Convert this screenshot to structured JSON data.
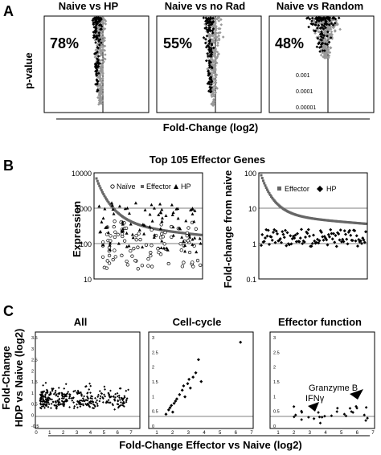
{
  "panel_A": {
    "label": "A",
    "y_axis_label": "p-value",
    "x_axis_label": "Fold-Change (log2)",
    "plots": [
      {
        "title": "Naive vs HP",
        "percent": "78%"
      },
      {
        "title": "Naive vs no Rad",
        "percent": "55%"
      },
      {
        "title": "Naive vs Random",
        "percent": "48%"
      }
    ],
    "pvalue_tick_labels": [
      "0.001",
      "0.0001",
      "0.00001"
    ]
  },
  "panel_B": {
    "label": "B",
    "title": "Top 105 Effector Genes",
    "left": {
      "y_axis_label": "Expression",
      "legend": [
        "Naïve",
        "Effector",
        "HP"
      ],
      "y_ticks": [
        "10000",
        "1000",
        "100",
        "10"
      ]
    },
    "right": {
      "y_axis_label": "Fold-change from naive",
      "legend": [
        "Effector",
        "HP"
      ],
      "y_ticks": [
        "100",
        "10",
        "1",
        "0.1"
      ]
    }
  },
  "panel_C": {
    "label": "C",
    "y_axis_label_1": "Fold-Change",
    "y_axis_label_2": "HDP vs Naive (log2)",
    "x_axis_label": "Fold-Change Effector vs Naive (log2)",
    "plots": [
      {
        "title": "All"
      },
      {
        "title": "Cell-cycle"
      },
      {
        "title": "Effector function"
      }
    ],
    "annotations": [
      "Granzyme B",
      "IFNγ"
    ],
    "y_ticks": [
      "3.5",
      "3",
      "2.5",
      "2",
      "1.5",
      "1",
      "0.5",
      "0",
      "-0.5"
    ],
    "x_ticks": [
      "1",
      "2",
      "3",
      "4",
      "5",
      "6",
      "7"
    ],
    "x_ticks_first": [
      "0",
      "1",
      "2",
      "3",
      "4",
      "5",
      "6",
      "7"
    ]
  },
  "chart_data": [
    {
      "type": "scatter",
      "title": "Naive vs HP",
      "xlabel": "Fold-Change (log2)",
      "ylabel": "p-value",
      "y_scale": "log",
      "percent_label": "78%",
      "x_ticks": [
        -8,
        -6,
        -4,
        -2,
        0,
        2,
        4,
        6
      ]
    },
    {
      "type": "scatter",
      "title": "Naive vs no Rad",
      "percent_label": "55%",
      "x_ticks": [
        -8,
        -6,
        -4,
        -2,
        0,
        2,
        4,
        6
      ]
    },
    {
      "type": "scatter",
      "title": "Naive vs Random",
      "percent_label": "48%",
      "x_ticks": [
        -8,
        -6,
        -4,
        -2,
        0,
        2,
        4,
        6
      ]
    },
    {
      "type": "scatter",
      "title": "Top 105 Effector Genes",
      "ylabel": "Expression",
      "y_scale": "log",
      "ylim": [
        10,
        10000
      ],
      "series": [
        {
          "name": "Naïve"
        },
        {
          "name": "Effector"
        },
        {
          "name": "HP"
        }
      ]
    },
    {
      "type": "scatter",
      "ylabel": "Fold-change from naive",
      "y_scale": "log",
      "ylim": [
        0.1,
        100
      ],
      "series": [
        {
          "name": "Effector"
        },
        {
          "name": "HP"
        }
      ]
    },
    {
      "type": "scatter",
      "title": "All",
      "xlabel": "Fold-Change Effector vs Naive (log2)",
      "ylabel": "Fold-Change HDP vs Naive (log2)",
      "xlim": [
        0,
        7
      ],
      "ylim": [
        -0.5,
        3.5
      ]
    },
    {
      "type": "scatter",
      "title": "Cell-cycle",
      "xlim": [
        0,
        7
      ],
      "ylim": [
        0,
        3.5
      ],
      "x": [
        0.8,
        1.0,
        1.2,
        1.3,
        1.4,
        1.6,
        1.8,
        2.0,
        2.2,
        2.4,
        2.6,
        2.8,
        3.0,
        3.2,
        1.1,
        1.5,
        2.1,
        2.5,
        3.4,
        6.3
      ],
      "y": [
        0.1,
        0.3,
        0.5,
        0.2,
        0.6,
        0.8,
        1.0,
        1.2,
        0.9,
        1.5,
        1.3,
        1.8,
        2.0,
        2.6,
        0.4,
        0.7,
        1.4,
        1.7,
        1.6,
        3.4
      ]
    },
    {
      "type": "scatter",
      "title": "Effector function",
      "xlim": [
        0,
        7
      ],
      "ylim": [
        0,
        3.5
      ],
      "annotations": [
        {
          "label": "Granzyme B",
          "x": 6.0,
          "y": 1.35
        },
        {
          "label": "IFNγ",
          "x": 3.1,
          "y": 0.75
        }
      ]
    }
  ]
}
